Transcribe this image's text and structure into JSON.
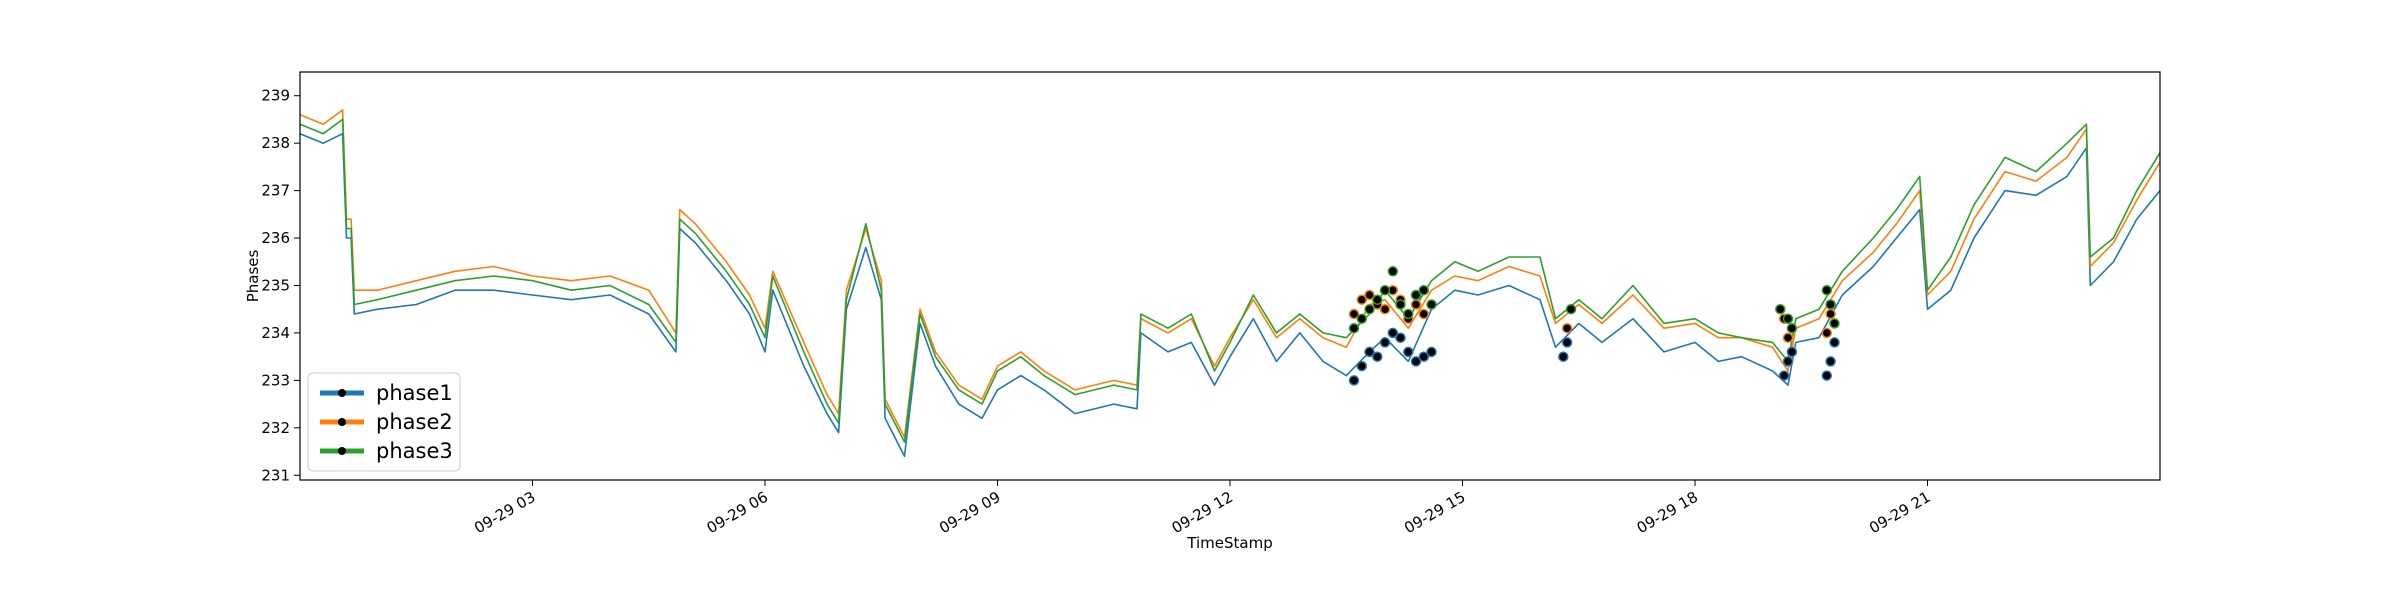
{
  "chart_data": {
    "type": "line",
    "title": "",
    "xlabel": "TimeStamp",
    "ylabel": "Phases",
    "ylim": [
      230.9,
      239.5
    ],
    "xlim_hours": [
      0,
      24
    ],
    "x_ticks": [
      {
        "hour": 3,
        "label": "09-29 03"
      },
      {
        "hour": 6,
        "label": "09-29 06"
      },
      {
        "hour": 9,
        "label": "09-29 09"
      },
      {
        "hour": 12,
        "label": "09-29 12"
      },
      {
        "hour": 15,
        "label": "09-29 15"
      },
      {
        "hour": 18,
        "label": "09-29 18"
      },
      {
        "hour": 21,
        "label": "09-29 21"
      }
    ],
    "y_ticks": [
      231,
      232,
      233,
      234,
      235,
      236,
      237,
      238,
      239
    ],
    "grid": false,
    "legend_position": "lower-left",
    "series": [
      {
        "name": "phase1",
        "color": "#1f77b4",
        "points": [
          [
            0.0,
            238.2
          ],
          [
            0.3,
            238.0
          ],
          [
            0.55,
            238.2
          ],
          [
            0.6,
            236.0
          ],
          [
            0.66,
            236.0
          ],
          [
            0.7,
            234.4
          ],
          [
            1.0,
            234.5
          ],
          [
            1.5,
            234.6
          ],
          [
            2.0,
            234.9
          ],
          [
            2.5,
            234.9
          ],
          [
            3.0,
            234.8
          ],
          [
            3.5,
            234.7
          ],
          [
            4.0,
            234.8
          ],
          [
            4.5,
            234.4
          ],
          [
            4.85,
            233.6
          ],
          [
            4.9,
            236.2
          ],
          [
            5.1,
            235.9
          ],
          [
            5.5,
            235.1
          ],
          [
            5.8,
            234.4
          ],
          [
            6.0,
            233.6
          ],
          [
            6.1,
            234.9
          ],
          [
            6.5,
            233.3
          ],
          [
            6.8,
            232.3
          ],
          [
            6.95,
            231.9
          ],
          [
            7.05,
            234.5
          ],
          [
            7.3,
            235.8
          ],
          [
            7.5,
            234.7
          ],
          [
            7.55,
            232.2
          ],
          [
            7.8,
            231.4
          ],
          [
            8.0,
            234.2
          ],
          [
            8.2,
            233.3
          ],
          [
            8.5,
            232.5
          ],
          [
            8.8,
            232.2
          ],
          [
            9.0,
            232.8
          ],
          [
            9.3,
            233.1
          ],
          [
            9.6,
            232.8
          ],
          [
            10.0,
            232.3
          ],
          [
            10.5,
            232.5
          ],
          [
            10.8,
            232.4
          ],
          [
            10.85,
            234.0
          ],
          [
            11.2,
            233.6
          ],
          [
            11.5,
            233.8
          ],
          [
            11.8,
            232.9
          ],
          [
            12.0,
            233.5
          ],
          [
            12.3,
            234.3
          ],
          [
            12.6,
            233.4
          ],
          [
            12.9,
            234.0
          ],
          [
            13.2,
            233.4
          ],
          [
            13.5,
            233.1
          ],
          [
            13.8,
            233.6
          ],
          [
            14.0,
            233.9
          ],
          [
            14.3,
            233.4
          ],
          [
            14.6,
            234.5
          ],
          [
            14.9,
            234.9
          ],
          [
            15.2,
            234.8
          ],
          [
            15.6,
            235.0
          ],
          [
            16.0,
            234.7
          ],
          [
            16.2,
            233.7
          ],
          [
            16.5,
            234.2
          ],
          [
            16.8,
            233.8
          ],
          [
            17.2,
            234.3
          ],
          [
            17.6,
            233.6
          ],
          [
            18.0,
            233.8
          ],
          [
            18.3,
            233.4
          ],
          [
            18.6,
            233.5
          ],
          [
            19.0,
            233.2
          ],
          [
            19.2,
            232.9
          ],
          [
            19.3,
            233.8
          ],
          [
            19.6,
            233.9
          ],
          [
            19.9,
            234.8
          ],
          [
            20.3,
            235.4
          ],
          [
            20.6,
            236.0
          ],
          [
            20.9,
            236.6
          ],
          [
            21.0,
            234.5
          ],
          [
            21.3,
            234.9
          ],
          [
            21.6,
            236.0
          ],
          [
            22.0,
            237.0
          ],
          [
            22.4,
            236.9
          ],
          [
            22.8,
            237.3
          ],
          [
            23.05,
            237.9
          ],
          [
            23.1,
            235.0
          ],
          [
            23.4,
            235.5
          ],
          [
            23.7,
            236.4
          ],
          [
            24.0,
            237.0
          ]
        ]
      },
      {
        "name": "phase2",
        "color": "#ff7f0e",
        "points": [
          [
            0.0,
            238.6
          ],
          [
            0.3,
            238.4
          ],
          [
            0.55,
            238.7
          ],
          [
            0.6,
            236.4
          ],
          [
            0.66,
            236.4
          ],
          [
            0.7,
            234.9
          ],
          [
            1.0,
            234.9
          ],
          [
            1.5,
            235.1
          ],
          [
            2.0,
            235.3
          ],
          [
            2.5,
            235.4
          ],
          [
            3.0,
            235.2
          ],
          [
            3.5,
            235.1
          ],
          [
            4.0,
            235.2
          ],
          [
            4.5,
            234.9
          ],
          [
            4.85,
            234.0
          ],
          [
            4.9,
            236.6
          ],
          [
            5.1,
            236.3
          ],
          [
            5.5,
            235.5
          ],
          [
            5.8,
            234.8
          ],
          [
            6.0,
            234.1
          ],
          [
            6.1,
            235.3
          ],
          [
            6.5,
            233.8
          ],
          [
            6.8,
            232.7
          ],
          [
            6.95,
            232.3
          ],
          [
            7.05,
            234.9
          ],
          [
            7.3,
            236.2
          ],
          [
            7.5,
            235.1
          ],
          [
            7.55,
            232.6
          ],
          [
            7.8,
            231.8
          ],
          [
            8.0,
            234.5
          ],
          [
            8.2,
            233.6
          ],
          [
            8.5,
            232.9
          ],
          [
            8.8,
            232.6
          ],
          [
            9.0,
            233.3
          ],
          [
            9.3,
            233.6
          ],
          [
            9.6,
            233.2
          ],
          [
            10.0,
            232.8
          ],
          [
            10.5,
            233.0
          ],
          [
            10.8,
            232.9
          ],
          [
            10.85,
            234.3
          ],
          [
            11.2,
            234.0
          ],
          [
            11.5,
            234.3
          ],
          [
            11.8,
            233.3
          ],
          [
            12.0,
            233.9
          ],
          [
            12.3,
            234.7
          ],
          [
            12.6,
            233.9
          ],
          [
            12.9,
            234.3
          ],
          [
            13.2,
            233.9
          ],
          [
            13.5,
            233.7
          ],
          [
            13.8,
            234.6
          ],
          [
            14.0,
            234.7
          ],
          [
            14.3,
            234.1
          ],
          [
            14.6,
            234.9
          ],
          [
            14.9,
            235.2
          ],
          [
            15.2,
            235.1
          ],
          [
            15.6,
            235.4
          ],
          [
            16.0,
            235.2
          ],
          [
            16.2,
            234.2
          ],
          [
            16.5,
            234.6
          ],
          [
            16.8,
            234.2
          ],
          [
            17.2,
            234.8
          ],
          [
            17.6,
            234.1
          ],
          [
            18.0,
            234.2
          ],
          [
            18.3,
            233.9
          ],
          [
            18.6,
            233.9
          ],
          [
            19.0,
            233.7
          ],
          [
            19.2,
            233.2
          ],
          [
            19.3,
            234.1
          ],
          [
            19.6,
            234.3
          ],
          [
            19.9,
            235.1
          ],
          [
            20.3,
            235.7
          ],
          [
            20.6,
            236.3
          ],
          [
            20.9,
            237.0
          ],
          [
            21.0,
            234.8
          ],
          [
            21.3,
            235.3
          ],
          [
            21.6,
            236.4
          ],
          [
            22.0,
            237.4
          ],
          [
            22.4,
            237.2
          ],
          [
            22.8,
            237.7
          ],
          [
            23.05,
            238.3
          ],
          [
            23.1,
            235.4
          ],
          [
            23.4,
            235.9
          ],
          [
            23.7,
            236.8
          ],
          [
            24.0,
            237.6
          ]
        ]
      },
      {
        "name": "phase3",
        "color": "#2ca02c",
        "points": [
          [
            0.0,
            238.4
          ],
          [
            0.3,
            238.2
          ],
          [
            0.55,
            238.5
          ],
          [
            0.6,
            236.2
          ],
          [
            0.66,
            236.2
          ],
          [
            0.7,
            234.6
          ],
          [
            1.0,
            234.7
          ],
          [
            1.5,
            234.9
          ],
          [
            2.0,
            235.1
          ],
          [
            2.5,
            235.2
          ],
          [
            3.0,
            235.1
          ],
          [
            3.5,
            234.9
          ],
          [
            4.0,
            235.0
          ],
          [
            4.5,
            234.6
          ],
          [
            4.85,
            233.8
          ],
          [
            4.9,
            236.4
          ],
          [
            5.1,
            236.1
          ],
          [
            5.5,
            235.3
          ],
          [
            5.8,
            234.6
          ],
          [
            6.0,
            233.9
          ],
          [
            6.1,
            235.2
          ],
          [
            6.5,
            233.6
          ],
          [
            6.8,
            232.5
          ],
          [
            6.95,
            232.1
          ],
          [
            7.05,
            234.7
          ],
          [
            7.3,
            236.3
          ],
          [
            7.5,
            234.9
          ],
          [
            7.55,
            232.5
          ],
          [
            7.8,
            231.7
          ],
          [
            8.0,
            234.4
          ],
          [
            8.2,
            233.5
          ],
          [
            8.5,
            232.8
          ],
          [
            8.8,
            232.5
          ],
          [
            9.0,
            233.2
          ],
          [
            9.3,
            233.5
          ],
          [
            9.6,
            233.1
          ],
          [
            10.0,
            232.7
          ],
          [
            10.5,
            232.9
          ],
          [
            10.8,
            232.8
          ],
          [
            10.85,
            234.4
          ],
          [
            11.2,
            234.1
          ],
          [
            11.5,
            234.4
          ],
          [
            11.8,
            233.2
          ],
          [
            12.0,
            233.8
          ],
          [
            12.3,
            234.8
          ],
          [
            12.6,
            234.0
          ],
          [
            12.9,
            234.4
          ],
          [
            13.2,
            234.0
          ],
          [
            13.5,
            233.9
          ],
          [
            13.8,
            234.4
          ],
          [
            14.0,
            234.9
          ],
          [
            14.3,
            234.3
          ],
          [
            14.6,
            235.1
          ],
          [
            14.9,
            235.5
          ],
          [
            15.2,
            235.3
          ],
          [
            15.6,
            235.6
          ],
          [
            16.0,
            235.6
          ],
          [
            16.2,
            234.3
          ],
          [
            16.5,
            234.7
          ],
          [
            16.8,
            234.3
          ],
          [
            17.2,
            235.0
          ],
          [
            17.6,
            234.2
          ],
          [
            18.0,
            234.3
          ],
          [
            18.3,
            234.0
          ],
          [
            18.6,
            233.9
          ],
          [
            19.0,
            233.8
          ],
          [
            19.2,
            233.4
          ],
          [
            19.3,
            234.3
          ],
          [
            19.6,
            234.5
          ],
          [
            19.9,
            235.3
          ],
          [
            20.3,
            236.0
          ],
          [
            20.6,
            236.6
          ],
          [
            20.9,
            237.3
          ],
          [
            21.0,
            234.9
          ],
          [
            21.3,
            235.6
          ],
          [
            21.6,
            236.7
          ],
          [
            22.0,
            237.7
          ],
          [
            22.4,
            237.4
          ],
          [
            22.8,
            238.0
          ],
          [
            23.05,
            238.4
          ],
          [
            23.1,
            235.6
          ],
          [
            23.4,
            236.0
          ],
          [
            23.7,
            237.0
          ],
          [
            24.0,
            237.8
          ]
        ]
      }
    ],
    "anomaly_points": [
      {
        "series": "phase1",
        "points": [
          [
            13.6,
            233.0
          ],
          [
            13.7,
            233.3
          ],
          [
            13.8,
            233.6
          ],
          [
            13.9,
            233.5
          ],
          [
            14.0,
            233.8
          ],
          [
            14.1,
            234.0
          ],
          [
            14.2,
            233.9
          ],
          [
            14.3,
            233.6
          ],
          [
            14.4,
            233.4
          ],
          [
            14.5,
            233.5
          ],
          [
            14.6,
            233.6
          ],
          [
            16.3,
            233.5
          ],
          [
            16.35,
            233.8
          ],
          [
            19.15,
            233.1
          ],
          [
            19.2,
            233.4
          ],
          [
            19.25,
            233.6
          ],
          [
            19.7,
            233.1
          ],
          [
            19.75,
            233.4
          ],
          [
            19.8,
            233.8
          ]
        ]
      },
      {
        "series": "phase2",
        "points": [
          [
            13.6,
            234.4
          ],
          [
            13.7,
            234.7
          ],
          [
            13.8,
            234.8
          ],
          [
            13.9,
            234.6
          ],
          [
            14.0,
            234.5
          ],
          [
            14.1,
            234.9
          ],
          [
            14.2,
            234.7
          ],
          [
            14.3,
            234.3
          ],
          [
            14.4,
            234.6
          ],
          [
            14.5,
            234.4
          ],
          [
            16.35,
            234.1
          ],
          [
            19.15,
            234.3
          ],
          [
            19.2,
            233.9
          ],
          [
            19.7,
            234.0
          ],
          [
            19.75,
            234.4
          ]
        ]
      },
      {
        "series": "phase3",
        "points": [
          [
            13.6,
            234.1
          ],
          [
            13.7,
            234.3
          ],
          [
            13.8,
            234.5
          ],
          [
            13.9,
            234.7
          ],
          [
            14.0,
            234.9
          ],
          [
            14.1,
            235.3
          ],
          [
            14.2,
            234.6
          ],
          [
            14.3,
            234.4
          ],
          [
            14.4,
            234.8
          ],
          [
            14.5,
            234.9
          ],
          [
            14.6,
            234.6
          ],
          [
            16.4,
            234.5
          ],
          [
            19.1,
            234.5
          ],
          [
            19.2,
            234.3
          ],
          [
            19.25,
            234.1
          ],
          [
            19.7,
            234.9
          ],
          [
            19.75,
            234.6
          ],
          [
            19.8,
            234.2
          ]
        ]
      }
    ]
  }
}
